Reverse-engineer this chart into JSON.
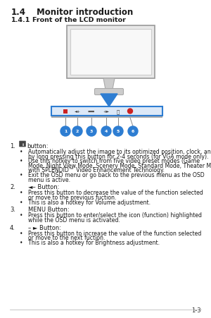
{
  "title1": "1.4",
  "title1b": "Monitor introduction",
  "title2": "1.4.1",
  "title2b": "Front of the LCD monitor",
  "background_color": "#ffffff",
  "text_color": "#1a1a1a",
  "footer_text": "1-3",
  "items": [
    {
      "num": "1.",
      "label": " button:",
      "has_icon": true,
      "bullets": [
        "Automatically adjust the image to its optimized position, clock, and phase\nby long pressing this button for 2-4 seconds (for VGA mode only).",
        "Use this hotkey to switch from five video preset modes (Game\nMode, Night View Mode, Scenery Mode, Standard Mode, Theater Mode)\nwith SPLENDID™ Video Enhancement Technology.",
        "Exit the OSD menu or go back to the previous menu as the OSD\nmenu is active."
      ]
    },
    {
      "num": "2.",
      "label": "◄– Button:",
      "has_icon": false,
      "bullets": [
        "Press this button to decrease the value of the function selected\nor move to the previous fuction.",
        "This is also a hotkey for Volume adjustment."
      ]
    },
    {
      "num": "3.",
      "label": "MENU Button:",
      "has_icon": false,
      "bullets": [
        "Press this button to enter/select the icon (function) highlighted\nwhile the OSD menu is activated."
      ]
    },
    {
      "num": "4.",
      "label": "– ► Button:",
      "has_icon": false,
      "bullets": [
        "Press this button to increase the value of the function selected\nor move to the next fuction.",
        "This is also a hotkey for Brightness adjustment."
      ]
    }
  ]
}
